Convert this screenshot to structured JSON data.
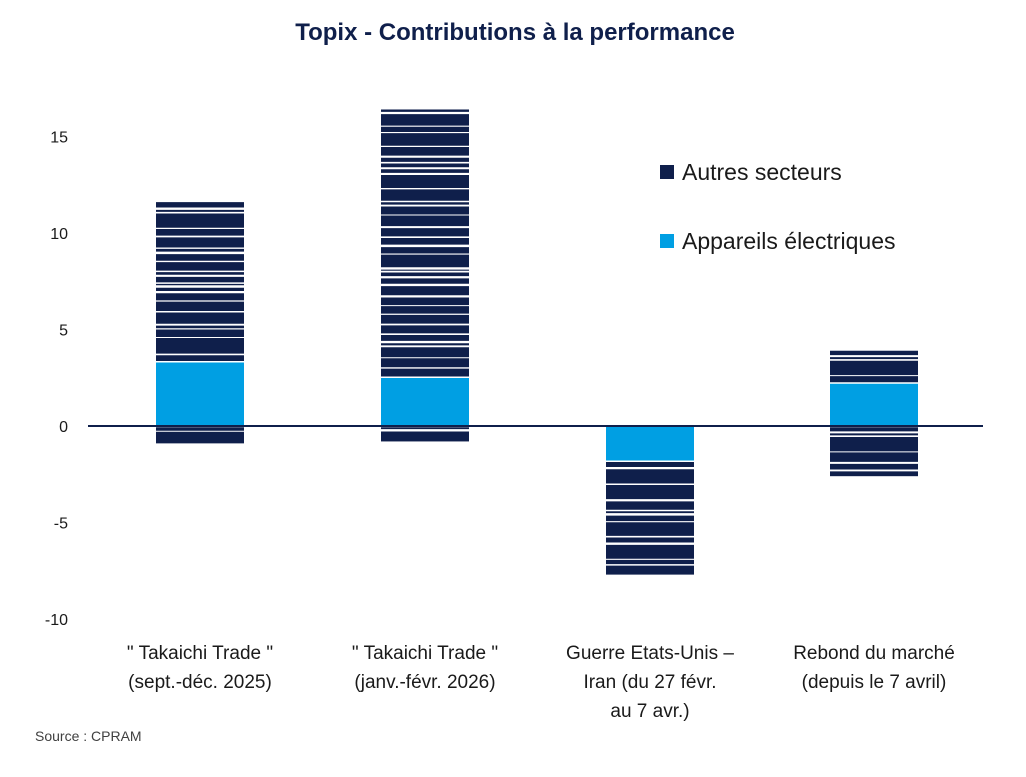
{
  "chart_data": {
    "type": "bar",
    "stacked": true,
    "title": "Topix - Contributions à la performance",
    "categories": [
      [
        " \" Takaichi Trade \"",
        "(sept.-déc. 2025)"
      ],
      [
        " \" Takaichi Trade \"",
        "(janv.-févr. 2026)"
      ],
      [
        "Guerre Etats-Unis –",
        "Iran (du 27 févr.",
        "au 7 avr.)"
      ],
      [
        "Rebond du marché",
        "(depuis le 7 avril)"
      ]
    ],
    "series": [
      {
        "name": "Appareils électriques",
        "color": "#009fe3",
        "values": [
          3.3,
          2.5,
          -1.8,
          2.2
        ]
      },
      {
        "name": "Autres secteurs",
        "color": "#0f1f4b",
        "positive": [
          8.3,
          13.9,
          0,
          1.7
        ],
        "negative": [
          -0.9,
          -0.8,
          -5.9,
          -2.6
        ]
      }
    ],
    "ylim": [
      -10,
      17
    ],
    "yticks": [
      15,
      10,
      5,
      0,
      -5,
      -10
    ],
    "xlabel": "",
    "ylabel": "",
    "grid": false,
    "legend_position": "top-right"
  },
  "source": "Source : CPRAM"
}
